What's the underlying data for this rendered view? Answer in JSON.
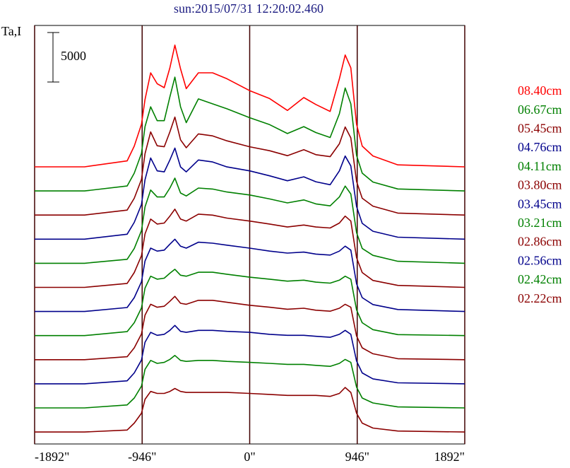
{
  "chart_data": {
    "type": "line",
    "title": "sun:2015/07/31 12:20:02.460",
    "y_label": "Ta,I",
    "scale_bar": 5000,
    "xlim": [
      -1892,
      1892
    ],
    "xticks": [
      {
        "value": -1892,
        "label": "-1892\""
      },
      {
        "value": -946,
        "label": "-946\""
      },
      {
        "value": 0,
        "label": "0\""
      },
      {
        "value": 946,
        "label": "946\""
      },
      {
        "value": 1892,
        "label": "1892\""
      }
    ],
    "grid": true,
    "x": [
      -1892,
      -1453,
      -1078,
      -1015,
      -952,
      -921,
      -871,
      -814,
      -752,
      -702,
      -658,
      -608,
      -558,
      -451,
      -326,
      -200,
      0,
      175,
      332,
      476,
      582,
      708,
      789,
      840,
      890,
      940,
      990,
      1084,
      1303,
      1892
    ],
    "series": [
      {
        "name": "08.40cm",
        "color": "#ff0000",
        "values": [
          0,
          0,
          600,
          2100,
          4300,
          6800,
          9500,
          8400,
          8000,
          10000,
          12300,
          9900,
          7900,
          9500,
          9500,
          8900,
          7700,
          6900,
          5700,
          7000,
          6300,
          5600,
          8900,
          11300,
          10000,
          4300,
          2100,
          1100,
          200,
          0
        ]
      },
      {
        "name": "06.67cm",
        "color": "#008000",
        "values": [
          0,
          0,
          500,
          1800,
          3800,
          6500,
          8500,
          7100,
          7100,
          9500,
          11500,
          8500,
          6900,
          9300,
          8800,
          8300,
          7400,
          6700,
          5800,
          6500,
          5900,
          5400,
          7800,
          10400,
          8800,
          3600,
          1800,
          900,
          200,
          0
        ]
      },
      {
        "name": "05.45cm",
        "color": "#8b0000",
        "values": [
          0,
          0,
          500,
          1700,
          3600,
          6200,
          8400,
          7000,
          6900,
          8400,
          9900,
          7600,
          6800,
          8200,
          8000,
          7500,
          6900,
          6500,
          6000,
          6600,
          6100,
          5900,
          7200,
          8900,
          7800,
          3400,
          1700,
          900,
          200,
          0
        ]
      },
      {
        "name": "04.76cm",
        "color": "#00008b",
        "values": [
          0,
          0,
          500,
          1700,
          3500,
          6000,
          8200,
          6900,
          6800,
          8000,
          9200,
          7300,
          6800,
          8000,
          7800,
          7300,
          6900,
          6400,
          5900,
          6300,
          5800,
          5500,
          6900,
          8400,
          7400,
          3300,
          1600,
          800,
          200,
          0
        ]
      },
      {
        "name": "04.11cm",
        "color": "#008000",
        "values": [
          0,
          0,
          400,
          1500,
          3300,
          5700,
          7400,
          6700,
          6700,
          7600,
          8600,
          7100,
          6800,
          7600,
          7500,
          7200,
          6900,
          6500,
          6100,
          6400,
          6000,
          5800,
          6700,
          7800,
          7000,
          3100,
          1500,
          800,
          200,
          0
        ]
      },
      {
        "name": "03.80cm",
        "color": "#8b0000",
        "values": [
          0,
          0,
          400,
          1500,
          3200,
          5400,
          6900,
          6400,
          6500,
          7200,
          7900,
          6900,
          6700,
          7400,
          7300,
          7000,
          6700,
          6400,
          6100,
          6300,
          6100,
          6000,
          6500,
          7200,
          6700,
          3000,
          1500,
          700,
          200,
          0
        ]
      },
      {
        "name": "03.45cm",
        "color": "#00008b",
        "values": [
          0,
          0,
          400,
          1400,
          3000,
          5100,
          6400,
          6100,
          6200,
          6800,
          7300,
          6600,
          6400,
          7000,
          6900,
          6700,
          6400,
          6100,
          5900,
          6000,
          5800,
          5700,
          6100,
          6600,
          6200,
          2800,
          1400,
          700,
          200,
          0
        ]
      },
      {
        "name": "03.21cm",
        "color": "#008000",
        "values": [
          0,
          0,
          400,
          1300,
          2800,
          4800,
          6000,
          5700,
          5800,
          6300,
          6700,
          6100,
          6000,
          6400,
          6400,
          6200,
          5900,
          5700,
          5500,
          5600,
          5400,
          5300,
          5600,
          6000,
          5700,
          2600,
          1300,
          600,
          100,
          0
        ]
      },
      {
        "name": "02.86cm",
        "color": "#8b0000",
        "values": [
          0,
          0,
          300,
          1200,
          2600,
          4500,
          5600,
          5300,
          5400,
          5900,
          6400,
          5700,
          5600,
          6000,
          6000,
          5800,
          5500,
          5300,
          5100,
          5200,
          5000,
          4900,
          5200,
          5600,
          5300,
          2400,
          1200,
          600,
          100,
          0
        ]
      },
      {
        "name": "02.56cm",
        "color": "#00008b",
        "values": [
          0,
          0,
          300,
          1100,
          2400,
          4200,
          5200,
          4900,
          5000,
          5400,
          5900,
          5300,
          5200,
          5400,
          5400,
          5300,
          5200,
          5000,
          4900,
          4900,
          4800,
          4700,
          5000,
          5400,
          5000,
          2300,
          1100,
          500,
          100,
          0
        ]
      },
      {
        "name": "02.42cm",
        "color": "#008000",
        "values": [
          0,
          0,
          300,
          1000,
          2200,
          3900,
          4800,
          4500,
          4600,
          4900,
          5300,
          4800,
          4700,
          4800,
          4800,
          4700,
          4600,
          4500,
          4400,
          4400,
          4300,
          4200,
          4500,
          4900,
          4600,
          2100,
          1000,
          500,
          100,
          0
        ]
      },
      {
        "name": "02.22cm",
        "color": "#8b0000",
        "values": [
          0,
          0,
          200,
          900,
          1900,
          3300,
          4100,
          3900,
          3900,
          4100,
          4400,
          4100,
          4000,
          4000,
          4000,
          4000,
          3900,
          3800,
          3700,
          3700,
          3700,
          3600,
          3900,
          4500,
          4000,
          1900,
          900,
          400,
          100,
          0
        ]
      }
    ]
  }
}
